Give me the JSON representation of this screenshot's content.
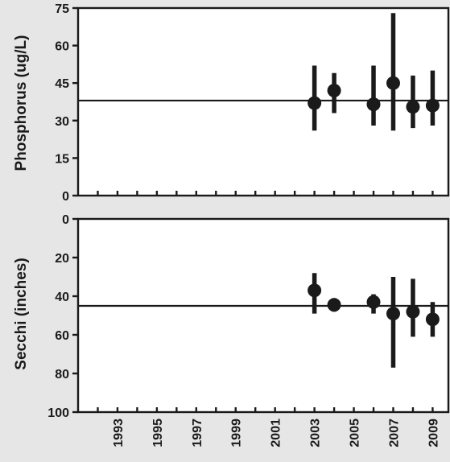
{
  "chart_data": [
    {
      "type": "scatter",
      "ylabel": "Phosphorus (ug/L)",
      "xlabel": "",
      "ylim": [
        0,
        75
      ],
      "y_ticks": [
        0,
        15,
        30,
        45,
        60,
        75
      ],
      "y_tick_labels": [
        "0",
        "15",
        "30",
        "45",
        "60",
        "75"
      ],
      "reversed_y": false,
      "grid": false,
      "reference_line": 38,
      "series": [
        {
          "x": [
            2003,
            2004,
            2006,
            2007,
            2008,
            2009
          ],
          "y": [
            37,
            42,
            36.5,
            45,
            35.5,
            36
          ],
          "low": [
            26,
            33,
            28,
            26,
            27,
            28
          ],
          "high": [
            52,
            49,
            52,
            73,
            48,
            50
          ]
        }
      ]
    },
    {
      "type": "scatter",
      "ylabel": "Secchi (inches)",
      "xlabel": "",
      "ylim": [
        100,
        0
      ],
      "y_ticks": [
        0,
        20,
        40,
        60,
        80,
        100
      ],
      "y_tick_labels": [
        "0",
        "20",
        "40",
        "60",
        "80",
        "100"
      ],
      "reversed_y": true,
      "grid": false,
      "reference_line": 45,
      "x_tick_labels": [
        "1993",
        "1995",
        "1997",
        "1999",
        "2001",
        "2003",
        "2005",
        "2007",
        "2009"
      ],
      "series": [
        {
          "x": [
            2003,
            2004,
            2006,
            2007,
            2008,
            2009
          ],
          "y": [
            37,
            44.5,
            43,
            49,
            48,
            52
          ],
          "low": [
            28,
            41,
            39,
            30,
            31,
            43
          ],
          "high": [
            49,
            48,
            49,
            77,
            61,
            61
          ]
        }
      ]
    }
  ]
}
